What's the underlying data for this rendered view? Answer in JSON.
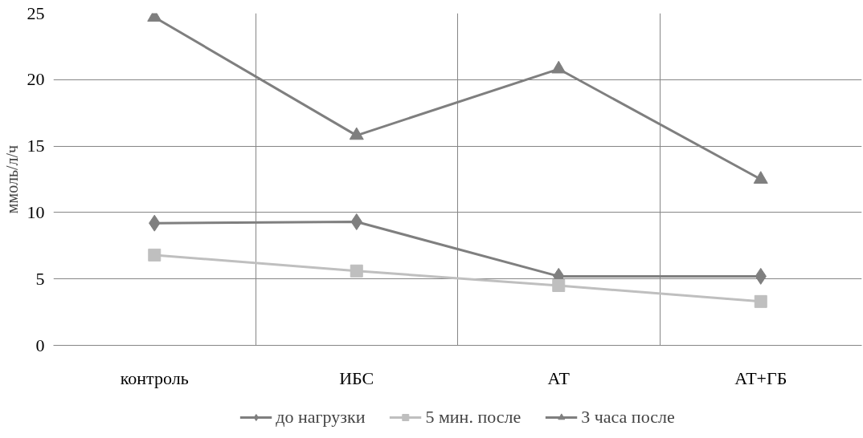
{
  "chart_data": {
    "type": "line",
    "ylabel": "ммоль/л/ч",
    "categories": [
      "контроль",
      "ИБС",
      "АТ",
      "АТ+ГБ"
    ],
    "series": [
      {
        "name": "до нагрузки",
        "color": "#7f7f7f",
        "marker": "diamond",
        "values": [
          9.2,
          9.3,
          5.2,
          5.2
        ]
      },
      {
        "name": "5 мин. после",
        "color": "#bfbfbf",
        "marker": "square",
        "values": [
          6.8,
          5.6,
          4.5,
          3.3
        ]
      },
      {
        "name": "3 часа после",
        "color": "#7f7f7f",
        "marker": "triangle",
        "values": [
          24.7,
          15.8,
          20.8,
          12.5
        ]
      }
    ],
    "ylim": [
      0,
      25
    ],
    "yticks": [
      0,
      5,
      10,
      15,
      20,
      25
    ],
    "grid": true,
    "legend": "bottom",
    "line_style": "solid"
  }
}
